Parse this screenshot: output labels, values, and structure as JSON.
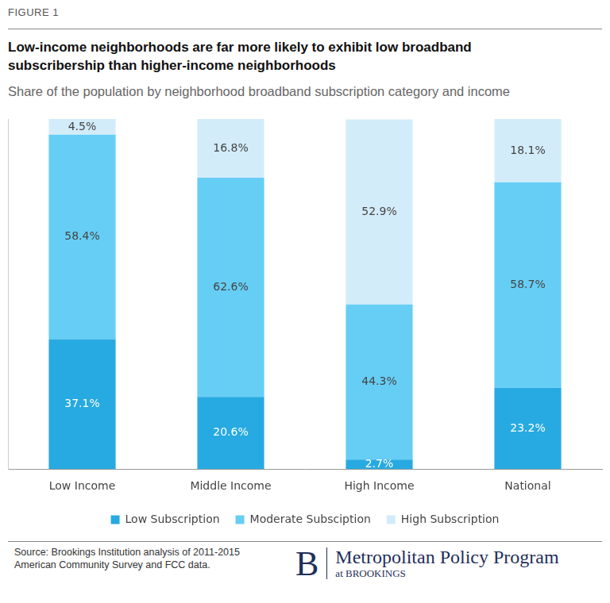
{
  "chart_data": {
    "type": "bar",
    "figure_label": "FIGURE 1",
    "title": "Low-income neighborhoods are far more likely to exhibit low broadband subscribership than higher-income neighborhoods",
    "subtitle": "Share of the population by neighborhood broadband subscription category and income",
    "categories": [
      "Low Income",
      "Middle Income",
      "High Income",
      "National"
    ],
    "series": [
      {
        "name": "Low Subscription",
        "color": "#27aae1",
        "values": [
          37.1,
          20.6,
          2.7,
          23.2
        ],
        "value_labels": [
          "37.1%",
          "20.6%",
          "2.7%",
          "23.2%"
        ]
      },
      {
        "name": "Moderate Subsciption",
        "color": "#66cef5",
        "values": [
          58.4,
          62.6,
          44.3,
          58.7
        ],
        "value_labels": [
          "58.4%",
          "62.6%",
          "44.3%",
          "58.7%"
        ]
      },
      {
        "name": "High Subscription",
        "color": "#d3ecfa",
        "values": [
          4.5,
          16.8,
          52.9,
          18.1
        ],
        "value_labels": [
          "4.5%",
          "16.8%",
          "52.9%",
          "18.1%"
        ]
      }
    ],
    "ylim": [
      0,
      100
    ],
    "stacked": true,
    "data_labels": true,
    "legend": "bottom",
    "grid": false,
    "tick_labels": "x",
    "source": "Source: Brookings Institution analysis of 2011-2015 American Community Survey and FCC data.",
    "branding": {
      "logo": "B",
      "program": "Metropolitan Policy Program",
      "organization": "at BROOKINGS"
    }
  }
}
